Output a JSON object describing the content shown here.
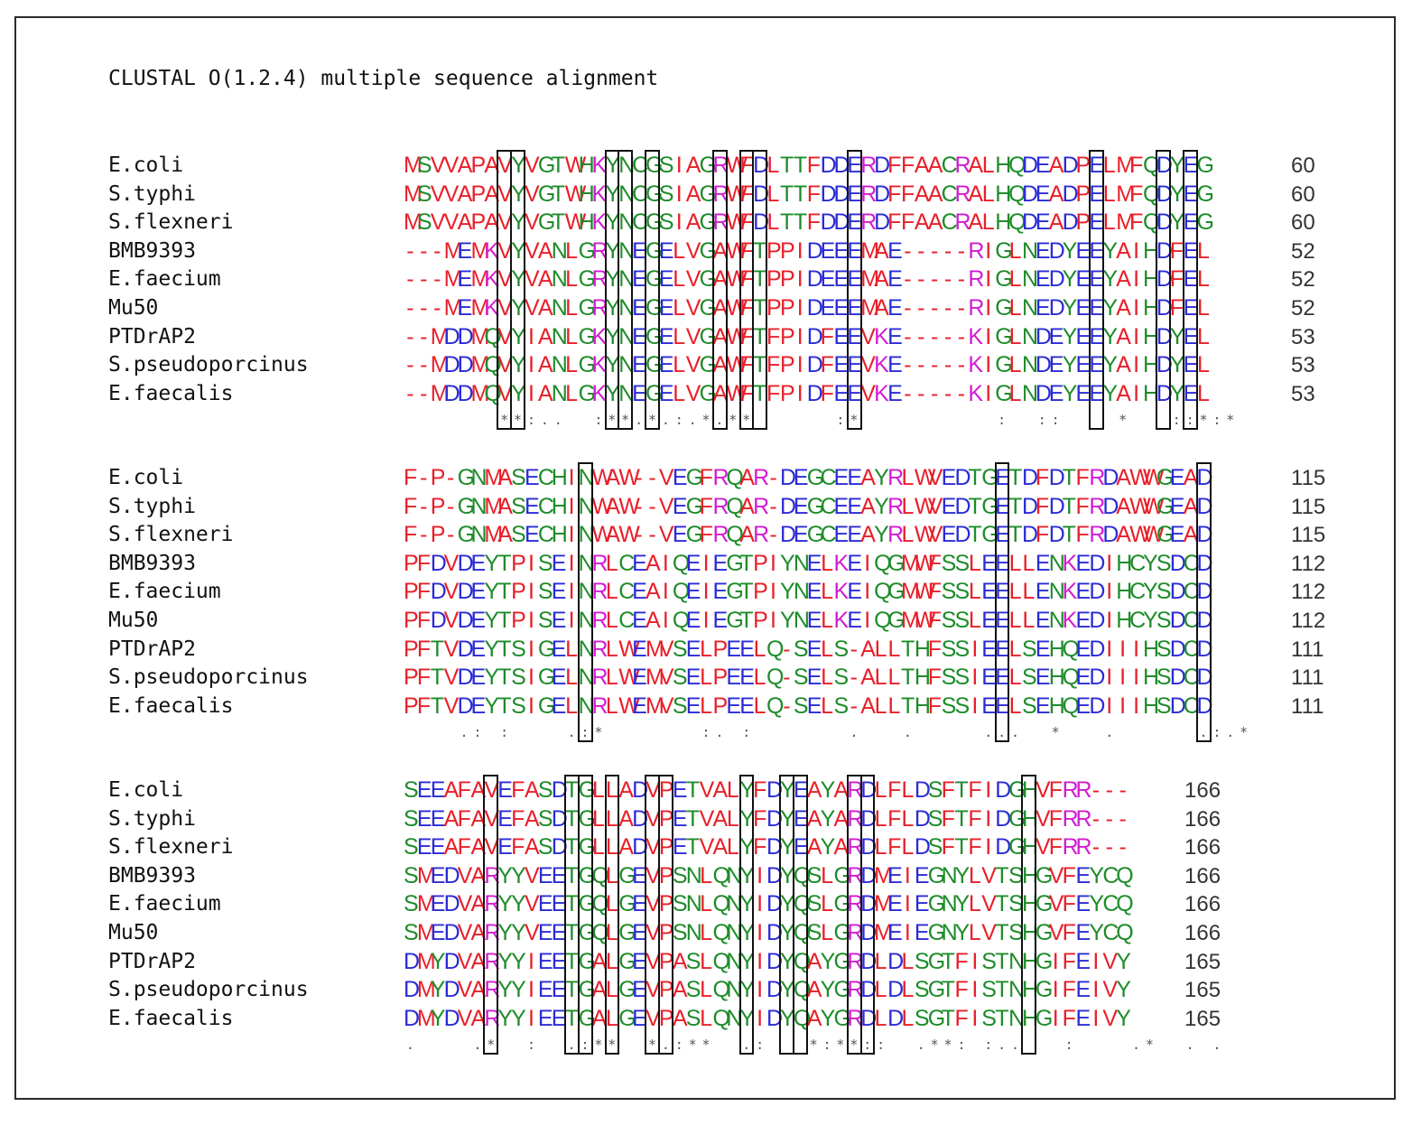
{
  "header": "CLUSTAL O(1.2.4) multiple sequence alignment",
  "colors": {
    "small_hydrophobic": "#e8202a",
    "acidic": "#2b2bd6",
    "basic": "#d21bd2",
    "polar": "#1e8c2a",
    "gap": "#e8202a"
  },
  "blocks": [
    {
      "rows": [
        {
          "name": "E.coli",
          "seq": "MSVVAPAVYVGTWHKYNCGSIAGRWFDLTTFDDERDFFAACRALHQDEADPELMFQDYEG",
          "end": "60"
        },
        {
          "name": "S.typhi",
          "seq": "MSVVAPAVYVGTWHKYNCGSIAGRWFDLTTFDDERDFFAACRALHQDEADPELMFQDYEG",
          "end": "60"
        },
        {
          "name": "S.flexneri",
          "seq": "MSVVAPAVYVGTWHKYNCGSIAGRWFDLTTFDDERDFFAACRALHQDEADPELMFQDYEG",
          "end": "60"
        },
        {
          "name": "BMB9393",
          "seq": "---MEMKVYVANLGRYNEGELVGAWFTPPIDEEEMAE-----RIGLNEDYEEYAIHDFEL",
          "end": "52"
        },
        {
          "name": "E.faecium",
          "seq": "---MEMKVYVANLGRYNEGELVGAWFTPPIDEEEMAE-----RIGLNEDYEEYAIHDFEL",
          "end": "52"
        },
        {
          "name": "Mu50",
          "seq": "---MEMKVYVANLGRYNEGELVGAWFTPPIDEEEMAE-----RIGLNEDYEEYAIHDFEL",
          "end": "52"
        },
        {
          "name": "PTDrAP2",
          "seq": "--MDDMQVYIANLGKYNEGELVGAWFTFPIDFEEVKE-----KIGLNDEYEEYAIHDYEL",
          "end": "53"
        },
        {
          "name": "S.pseudoporcinus",
          "seq": "--MDDMQVYIANLGKYNEGELVGAWFTFPIDFEEVKE-----KIGLNDEYEEYAIHDYEL",
          "end": "53"
        },
        {
          "name": "E.faecalis",
          "seq": "--MDDMQVYIANLGKYNEGELVGAWFTFPIDFEEVKE-----KIGLNDEYEEYAIHDYEL",
          "end": "53"
        }
      ],
      "consensus": "       **:..  :**.*.:.*.**      :*          :  ::    *   ::*:*",
      "boxes": [
        7,
        8,
        15,
        16,
        18,
        23,
        25,
        26,
        33,
        51,
        56,
        58
      ]
    },
    {
      "rows": [
        {
          "name": "E.coli",
          "seq": "F-P-GNMASECHINWAW--VEGFRQAR-DEGCEEAYRLWVEDTGETDFDTFRDAWWGEAD",
          "end": "115"
        },
        {
          "name": "S.typhi",
          "seq": "F-P-GNMASECHINWAW--VEGFRQAR-DEGCEEAYRLWVEDTGETDFDTFRDAWWGEAD",
          "end": "115"
        },
        {
          "name": "S.flexneri",
          "seq": "F-P-GNMASECHINWAW--VEGFRQAR-DEGCEEAYRLWVEDTGETDFDTFRDAWWGEAD",
          "end": "115"
        },
        {
          "name": "BMB9393",
          "seq": "PFDVDEYTPISEINRLCEAIQEIEGTPIYNELKEIQGMWFSSLEELLENKEDIHCYSDCD",
          "end": "112"
        },
        {
          "name": "E.faecium",
          "seq": "PFDVDEYTPISEINRLCEAIQEIEGTPIYNELKEIQGMWFSSLEELLENKEDIHCYSDCD",
          "end": "112"
        },
        {
          "name": "Mu50",
          "seq": "PFDVDEYTPISEINRLCEAIQEIEGTPIYNELKEIQGMWFSSLEELLENKEDIHCYSDCD",
          "end": "112"
        },
        {
          "name": "PTDrAP2",
          "seq": "PFTVDEYTSIGELNRLWEMVSELPEELQ-SELS-ALLTHFSSIEELSEHQEDIIIHSDCD",
          "end": "111"
        },
        {
          "name": "S.pseudoporcinus",
          "seq": "PFTVDEYTSIGELNRLWEMVSELPEELQ-SELS-ALLTHFSSIEELSEHQEDIIIHSDCD",
          "end": "111"
        },
        {
          "name": "E.faecalis",
          "seq": "PFTVDEYTSIGELNRLWEMVSELPEELQ-SELS-ALLTHFSSIEELSEHQEDIIIHSDCD",
          "end": "111"
        }
      ],
      "consensus": "    .: :    .:*       :. :       .   .     ...  *   .      .:.*",
      "boxes": [
        13,
        44,
        59
      ]
    },
    {
      "rows": [
        {
          "name": "E.coli",
          "seq": "SEEAFAVEFASDTGLLADVPETVALYFDYEAYARDLFLDSFTFIDGHVFRR---",
          "end": "166"
        },
        {
          "name": "S.typhi",
          "seq": "SEEAFAVEFASDTGLLADVPETVALYFDYEAYARDLFLDSFTFIDGHVFRR---",
          "end": "166"
        },
        {
          "name": "S.flexneri",
          "seq": "SEEAFAVEFASDTGLLADVPETVALYFDYEAYARDLFLDSFTFIDGHVFRR---",
          "end": "166"
        },
        {
          "name": "BMB9393",
          "seq": "SMEDVARYYVEETGQLGEVPSNLQNYIDYQSLGRDMEIEGNYLVTSHGVFEYCQ",
          "end": "166"
        },
        {
          "name": "E.faecium",
          "seq": "SMEDVARYYVEETGQLGEVPSNLQNYIDYQSLGRDMEIEGNYLVTSHGVFEYCQ",
          "end": "166"
        },
        {
          "name": "Mu50",
          "seq": "SMEDVARYYVEETGQLGEVPSNLQNYIDYQSLGRDMEIEGNYLVTSHGVFEYCQ",
          "end": "166"
        },
        {
          "name": "PTDrAP2",
          "seq": "DMYDVARYYIEETGALGEVPASLQNYIDYQAYGRDLDLSGTFISTNHGIFEIVY",
          "end": "165"
        },
        {
          "name": "S.pseudoporcinus",
          "seq": "DMYDVARYYIEETGALGEVPASLQNYIDYQAYGRDLDLSGTFISTNHGIFEIVY",
          "end": "165"
        },
        {
          "name": "E.faecalis",
          "seq": "DMYDVARYYIEETGALGEVPASLQNYIDYQAYGRDLDLSGTFISTNHGIFEIVY",
          "end": "165"
        }
      ],
      "consensus": ".    .*  :  .:**  *.:**  .:   *:**::  .**: :..   :    .*  . .",
      "boxes": [
        6,
        12,
        13,
        15,
        18,
        19,
        25,
        28,
        29,
        33,
        34,
        46
      ]
    }
  ]
}
